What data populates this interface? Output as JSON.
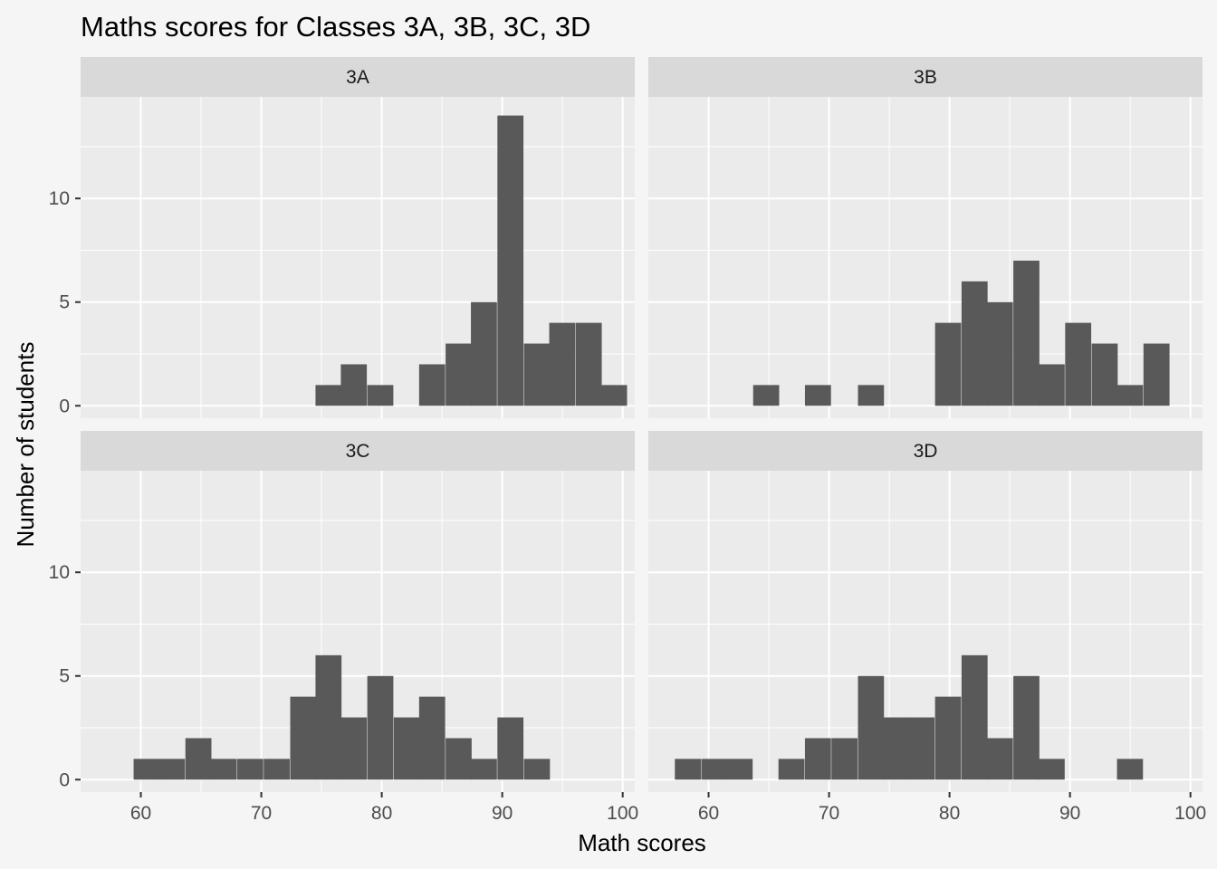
{
  "chart_data": {
    "type": "bar",
    "title": "Maths scores for Classes 3A, 3B, 3C, 3D",
    "xlabel": "Math scores",
    "ylabel": "Number of students",
    "xlim": [
      55,
      101
    ],
    "ylim": [
      -0.6,
      14.9
    ],
    "x_ticks": [
      60,
      70,
      80,
      90,
      100
    ],
    "y_ticks": [
      0,
      5,
      10
    ],
    "bin_width": 2.16,
    "grid": true,
    "panels": [
      {
        "name": "3A",
        "bins": [
          {
            "start": 74.5,
            "count": 1
          },
          {
            "start": 76.6,
            "count": 2
          },
          {
            "start": 78.8,
            "count": 1
          },
          {
            "start": 83.1,
            "count": 2
          },
          {
            "start": 85.3,
            "count": 3
          },
          {
            "start": 87.4,
            "count": 5
          },
          {
            "start": 89.6,
            "count": 14
          },
          {
            "start": 91.8,
            "count": 3
          },
          {
            "start": 93.9,
            "count": 4
          },
          {
            "start": 96.1,
            "count": 4
          },
          {
            "start": 98.2,
            "count": 1
          }
        ]
      },
      {
        "name": "3B",
        "bins": [
          {
            "start": 63.7,
            "count": 1
          },
          {
            "start": 68.0,
            "count": 1
          },
          {
            "start": 72.4,
            "count": 1
          },
          {
            "start": 78.8,
            "count": 4
          },
          {
            "start": 81.0,
            "count": 6
          },
          {
            "start": 83.1,
            "count": 5
          },
          {
            "start": 85.3,
            "count": 7
          },
          {
            "start": 87.4,
            "count": 2
          },
          {
            "start": 89.6,
            "count": 4
          },
          {
            "start": 91.8,
            "count": 3
          },
          {
            "start": 93.9,
            "count": 1
          },
          {
            "start": 96.1,
            "count": 3
          }
        ]
      },
      {
        "name": "3C",
        "bins": [
          {
            "start": 59.4,
            "count": 1
          },
          {
            "start": 61.5,
            "count": 1
          },
          {
            "start": 63.7,
            "count": 2
          },
          {
            "start": 65.8,
            "count": 1
          },
          {
            "start": 68.0,
            "count": 1
          },
          {
            "start": 70.2,
            "count": 1
          },
          {
            "start": 72.4,
            "count": 4
          },
          {
            "start": 74.5,
            "count": 6
          },
          {
            "start": 76.6,
            "count": 3
          },
          {
            "start": 78.8,
            "count": 5
          },
          {
            "start": 81.0,
            "count": 3
          },
          {
            "start": 83.1,
            "count": 4
          },
          {
            "start": 85.3,
            "count": 2
          },
          {
            "start": 87.4,
            "count": 1
          },
          {
            "start": 89.6,
            "count": 3
          },
          {
            "start": 91.8,
            "count": 1
          }
        ]
      },
      {
        "name": "3D",
        "bins": [
          {
            "start": 57.2,
            "count": 1
          },
          {
            "start": 59.4,
            "count": 1
          },
          {
            "start": 61.5,
            "count": 1
          },
          {
            "start": 65.8,
            "count": 1
          },
          {
            "start": 68.0,
            "count": 2
          },
          {
            "start": 70.2,
            "count": 2
          },
          {
            "start": 72.4,
            "count": 5
          },
          {
            "start": 74.5,
            "count": 3
          },
          {
            "start": 76.6,
            "count": 3
          },
          {
            "start": 78.8,
            "count": 4
          },
          {
            "start": 81.0,
            "count": 6
          },
          {
            "start": 83.1,
            "count": 2
          },
          {
            "start": 85.3,
            "count": 5
          },
          {
            "start": 87.4,
            "count": 1
          },
          {
            "start": 93.9,
            "count": 1
          }
        ]
      }
    ]
  }
}
